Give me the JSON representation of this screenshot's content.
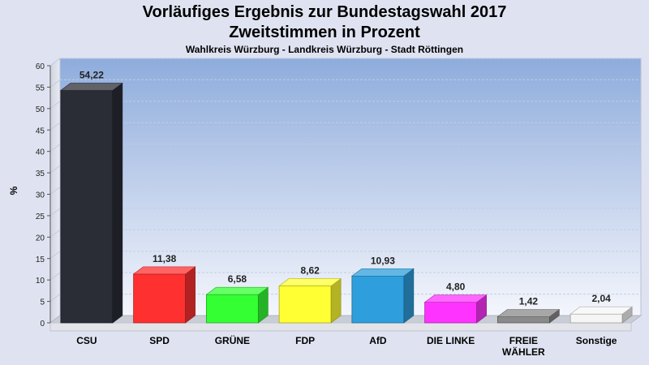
{
  "chart_data": {
    "type": "bar",
    "title": "Vorläufiges Ergebnis zur Bundestagswahl 2017",
    "subtitle": "Zweitstimmen in Prozent",
    "subsubtitle": "Wahlkreis Würzburg - Landkreis Würzburg - Stadt Röttingen",
    "ylabel": "%",
    "ylim": [
      0,
      60
    ],
    "yticks": [
      0,
      5,
      10,
      15,
      20,
      25,
      30,
      35,
      40,
      45,
      50,
      55,
      60
    ],
    "grid": true,
    "categories": [
      [
        "CSU"
      ],
      [
        "SPD"
      ],
      [
        "GRÜNE"
      ],
      [
        "FDP"
      ],
      [
        "AfD"
      ],
      [
        "DIE LINKE"
      ],
      [
        "FREIE",
        "WÄHLER"
      ],
      [
        "Sonstige"
      ]
    ],
    "values": [
      54.22,
      11.38,
      6.58,
      8.62,
      10.93,
      4.8,
      1.42,
      2.04
    ],
    "value_labels": [
      "54,22",
      "11,38",
      "6,58",
      "8,62",
      "10,93",
      "4,80",
      "1,42",
      "2,04"
    ],
    "colors": [
      "#2b2d36",
      "#ff3030",
      "#33ff33",
      "#ffff33",
      "#2e9fdc",
      "#ff33ff",
      "#8a8a8a",
      "#f5f5f5"
    ]
  }
}
